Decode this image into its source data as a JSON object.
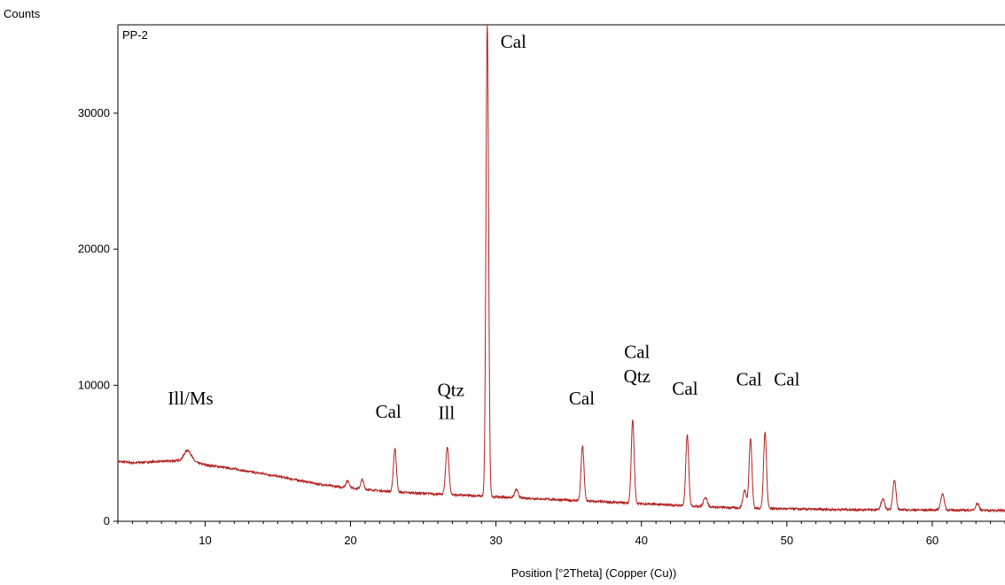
{
  "chart_data": {
    "type": "line",
    "title": "",
    "sample_label": "PP-2",
    "ylabel": "Counts",
    "xlabel": "Position [°2Theta] (Copper (Cu))",
    "xlim": [
      4,
      65
    ],
    "ylim": [
      0,
      36500
    ],
    "x_ticks": [
      10,
      20,
      30,
      40,
      50,
      60
    ],
    "y_ticks": [
      0,
      10000,
      20000,
      30000
    ],
    "grid": false,
    "line_color": "#b22222",
    "baseline": [
      [
        4,
        4400
      ],
      [
        5,
        4300
      ],
      [
        6,
        4350
      ],
      [
        7,
        4400
      ],
      [
        8,
        4450
      ],
      [
        9,
        4400
      ],
      [
        10,
        4150
      ],
      [
        11,
        4000
      ],
      [
        12,
        3850
      ],
      [
        13,
        3650
      ],
      [
        14,
        3500
      ],
      [
        15,
        3300
      ],
      [
        16,
        3100
      ],
      [
        17,
        2900
      ],
      [
        18,
        2700
      ],
      [
        19,
        2550
      ],
      [
        20,
        2450
      ],
      [
        21,
        2350
      ],
      [
        22,
        2250
      ],
      [
        23,
        2150
      ],
      [
        24,
        2100
      ],
      [
        25,
        2050
      ],
      [
        26,
        2000
      ],
      [
        27,
        1950
      ],
      [
        28,
        1900
      ],
      [
        29,
        1850
      ],
      [
        30,
        1800
      ],
      [
        31,
        1750
      ],
      [
        32,
        1700
      ],
      [
        33,
        1650
      ],
      [
        34,
        1600
      ],
      [
        35,
        1550
      ],
      [
        36,
        1500
      ],
      [
        37,
        1450
      ],
      [
        38,
        1400
      ],
      [
        39,
        1350
      ],
      [
        40,
        1300
      ],
      [
        41,
        1250
      ],
      [
        42,
        1200
      ],
      [
        43,
        1150
      ],
      [
        44,
        1100
      ],
      [
        45,
        1050
      ],
      [
        46,
        1000
      ],
      [
        47,
        980
      ],
      [
        48,
        960
      ],
      [
        49,
        940
      ],
      [
        50,
        920
      ],
      [
        51,
        900
      ],
      [
        52,
        880
      ],
      [
        53,
        870
      ],
      [
        54,
        860
      ],
      [
        55,
        850
      ],
      [
        56,
        850
      ],
      [
        57,
        840
      ],
      [
        58,
        840
      ],
      [
        59,
        830
      ],
      [
        60,
        830
      ],
      [
        61,
        820
      ],
      [
        62,
        820
      ],
      [
        63,
        810
      ],
      [
        64,
        800
      ],
      [
        65,
        800
      ]
    ],
    "peaks": [
      {
        "x": 8.8,
        "y": 800,
        "w": 0.25
      },
      {
        "x": 19.8,
        "y": 500,
        "w": 0.12
      },
      {
        "x": 20.8,
        "y": 700,
        "w": 0.1
      },
      {
        "x": 23.05,
        "y": 3200,
        "w": 0.1
      },
      {
        "x": 26.65,
        "y": 3500,
        "w": 0.11
      },
      {
        "x": 29.4,
        "y": 34800,
        "w": 0.09
      },
      {
        "x": 31.4,
        "y": 600,
        "w": 0.12
      },
      {
        "x": 35.95,
        "y": 4050,
        "w": 0.1
      },
      {
        "x": 39.4,
        "y": 6100,
        "w": 0.1
      },
      {
        "x": 43.15,
        "y": 5200,
        "w": 0.1
      },
      {
        "x": 44.4,
        "y": 700,
        "w": 0.12
      },
      {
        "x": 47.1,
        "y": 1300,
        "w": 0.12
      },
      {
        "x": 47.5,
        "y": 5100,
        "w": 0.1
      },
      {
        "x": 48.5,
        "y": 5600,
        "w": 0.1
      },
      {
        "x": 56.6,
        "y": 800,
        "w": 0.12
      },
      {
        "x": 57.4,
        "y": 2200,
        "w": 0.11
      },
      {
        "x": 60.7,
        "y": 1200,
        "w": 0.12
      },
      {
        "x": 63.1,
        "y": 500,
        "w": 0.12
      }
    ],
    "annotations": [
      {
        "text": "Ill/Ms",
        "x": 9.0,
        "y": 8600
      },
      {
        "text": "Cal",
        "x": 22.6,
        "y": 7600
      },
      {
        "text": "Qtz",
        "x": 26.9,
        "y": 9200
      },
      {
        "text": "Ill",
        "x": 26.6,
        "y": 7500
      },
      {
        "text": "Cal",
        "x": 31.2,
        "y": 34800
      },
      {
        "text": "Cal",
        "x": 35.9,
        "y": 8600
      },
      {
        "text": "Cal",
        "x": 39.7,
        "y": 12000
      },
      {
        "text": "Qtz",
        "x": 39.7,
        "y": 10200
      },
      {
        "text": "Cal",
        "x": 43.0,
        "y": 9300
      },
      {
        "text": "Cal",
        "x": 47.4,
        "y": 10000
      },
      {
        "text": "Cal",
        "x": 50.0,
        "y": 10000
      }
    ]
  }
}
